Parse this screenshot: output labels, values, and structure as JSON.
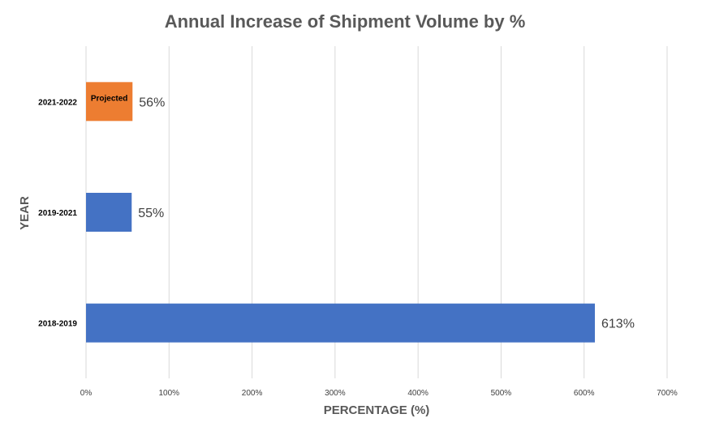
{
  "chart_data": {
    "type": "bar",
    "orientation": "horizontal",
    "title": "Annual Increase of Shipment Volume by %",
    "xlabel": "PERCENTAGE (%)",
    "ylabel": "YEAR",
    "xlim": [
      0,
      700
    ],
    "x_ticks": [
      "0%",
      "100%",
      "200%",
      "300%",
      "400%",
      "500%",
      "600%",
      "700%"
    ],
    "grid": true,
    "legend": "none",
    "categories": [
      "2021-2022",
      "2019-2021",
      "2018-2019"
    ],
    "values": [
      56,
      55,
      613
    ],
    "value_labels": [
      "56%",
      "55%",
      "613%"
    ],
    "bar_colors": [
      "#ED7D31",
      "#4472C4",
      "#4472C4"
    ],
    "annotations": [
      {
        "category": "2021-2022",
        "text": "Projected"
      }
    ]
  }
}
